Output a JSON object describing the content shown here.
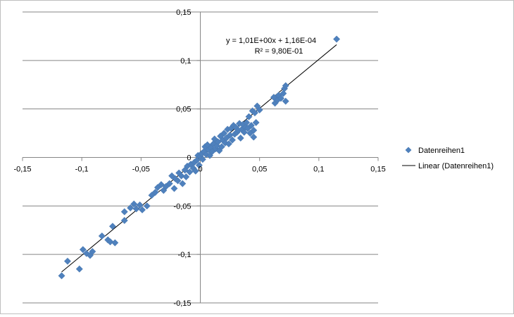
{
  "chart_data": {
    "type": "scatter",
    "title": "",
    "xlabel": "",
    "ylabel": "",
    "xlim": [
      -0.15,
      0.15
    ],
    "ylim": [
      -0.15,
      0.15
    ],
    "x_ticks": [
      -0.15,
      -0.1,
      -0.05,
      0,
      0.05,
      0.1,
      0.15
    ],
    "y_ticks": [
      -0.15,
      -0.1,
      -0.05,
      0,
      0.05,
      0.1,
      0.15
    ],
    "x_tick_labels": [
      "-0,15",
      "-0,1",
      "-0,05",
      "0",
      "0,05",
      "0,1",
      "0,15"
    ],
    "y_tick_labels": [
      "-0,15",
      "-0,1",
      "-0,05",
      "0",
      "0,05",
      "0,1",
      "0,15"
    ],
    "grid": "horizontal",
    "legend_position": "right",
    "series": [
      {
        "name": "Datenreihen1",
        "marker": "diamond",
        "color": "#4f81bd",
        "points": [
          [
            -0.117,
            -0.122
          ],
          [
            -0.112,
            -0.107
          ],
          [
            -0.102,
            -0.115
          ],
          [
            -0.099,
            -0.095
          ],
          [
            -0.096,
            -0.099
          ],
          [
            -0.093,
            -0.101
          ],
          [
            -0.091,
            -0.097
          ],
          [
            -0.083,
            -0.081
          ],
          [
            -0.078,
            -0.085
          ],
          [
            -0.076,
            -0.087
          ],
          [
            -0.072,
            -0.088
          ],
          [
            -0.074,
            -0.071
          ],
          [
            -0.064,
            -0.065
          ],
          [
            -0.064,
            -0.056
          ],
          [
            -0.059,
            -0.052
          ],
          [
            -0.056,
            -0.048
          ],
          [
            -0.054,
            -0.053
          ],
          [
            -0.051,
            -0.049
          ],
          [
            -0.049,
            -0.054
          ],
          [
            -0.045,
            -0.05
          ],
          [
            -0.041,
            -0.039
          ],
          [
            -0.038,
            -0.036
          ],
          [
            -0.036,
            -0.031
          ],
          [
            -0.033,
            -0.028
          ],
          [
            -0.031,
            -0.034
          ],
          [
            -0.029,
            -0.03
          ],
          [
            -0.026,
            -0.027
          ],
          [
            -0.024,
            -0.019
          ],
          [
            -0.022,
            -0.032
          ],
          [
            -0.021,
            -0.022
          ],
          [
            -0.019,
            -0.024
          ],
          [
            -0.018,
            -0.016
          ],
          [
            -0.016,
            -0.019
          ],
          [
            -0.015,
            -0.027
          ],
          [
            -0.013,
            -0.013
          ],
          [
            -0.012,
            -0.02
          ],
          [
            -0.011,
            -0.009
          ],
          [
            -0.009,
            -0.015
          ],
          [
            -0.008,
            -0.007
          ],
          [
            -0.006,
            -0.011
          ],
          [
            -0.005,
            -0.005
          ],
          [
            -0.004,
            -0.014
          ],
          [
            -0.003,
            -0.003
          ],
          [
            -0.002,
            0.002
          ],
          [
            -0.001,
            -0.008
          ],
          [
            0.0,
            0.001
          ],
          [
            0.001,
            0.004
          ],
          [
            0.002,
            -0.002
          ],
          [
            0.003,
            0.006
          ],
          [
            0.004,
            0.011
          ],
          [
            0.005,
            0.003
          ],
          [
            0.006,
            0.013
          ],
          [
            0.007,
            0.008
          ],
          [
            0.008,
            0.002
          ],
          [
            0.009,
            0.01
          ],
          [
            0.01,
            0.006
          ],
          [
            0.011,
            0.014
          ],
          [
            0.012,
            0.019
          ],
          [
            0.013,
            0.009
          ],
          [
            0.014,
            0.012
          ],
          [
            0.015,
            0.016
          ],
          [
            0.016,
            0.007
          ],
          [
            0.017,
            0.022
          ],
          [
            0.018,
            0.011
          ],
          [
            0.019,
            0.018
          ],
          [
            0.02,
            0.025
          ],
          [
            0.021,
            0.015
          ],
          [
            0.022,
            0.02
          ],
          [
            0.023,
            0.029
          ],
          [
            0.024,
            0.014
          ],
          [
            0.025,
            0.023
          ],
          [
            0.026,
            0.03
          ],
          [
            0.027,
            0.018
          ],
          [
            0.028,
            0.033
          ],
          [
            0.029,
            0.024
          ],
          [
            0.03,
            0.031
          ],
          [
            0.031,
            0.026
          ],
          [
            0.032,
            0.028
          ],
          [
            0.033,
            0.035
          ],
          [
            0.034,
            0.02
          ],
          [
            0.035,
            0.029
          ],
          [
            0.036,
            0.034
          ],
          [
            0.037,
            0.026
          ],
          [
            0.038,
            0.031
          ],
          [
            0.039,
            0.036
          ],
          [
            0.04,
            0.03
          ],
          [
            0.041,
            0.042
          ],
          [
            0.042,
            0.025
          ],
          [
            0.043,
            0.033
          ],
          [
            0.044,
            0.048
          ],
          [
            0.045,
            0.028
          ],
          [
            0.045,
            0.021
          ],
          [
            0.046,
            0.046
          ],
          [
            0.047,
            0.036
          ],
          [
            0.048,
            0.053
          ],
          [
            0.05,
            0.049
          ],
          [
            0.062,
            0.062
          ],
          [
            0.063,
            0.056
          ],
          [
            0.065,
            0.059
          ],
          [
            0.066,
            0.064
          ],
          [
            0.068,
            0.061
          ],
          [
            0.07,
            0.066
          ],
          [
            0.071,
            0.071
          ],
          [
            0.072,
            0.074
          ],
          [
            0.072,
            0.058
          ],
          [
            0.115,
            0.122
          ]
        ]
      },
      {
        "name": "Linear (Datenreihen1)",
        "type": "trendline",
        "color": "#000000",
        "slope": 1.01,
        "intercept": 0.000116,
        "x_range": [
          -0.117,
          0.115
        ]
      }
    ],
    "annotations": {
      "equation": "y = 1,01E+00x + 1,16E-04",
      "r_squared": "R² = 9,80E-01"
    }
  }
}
